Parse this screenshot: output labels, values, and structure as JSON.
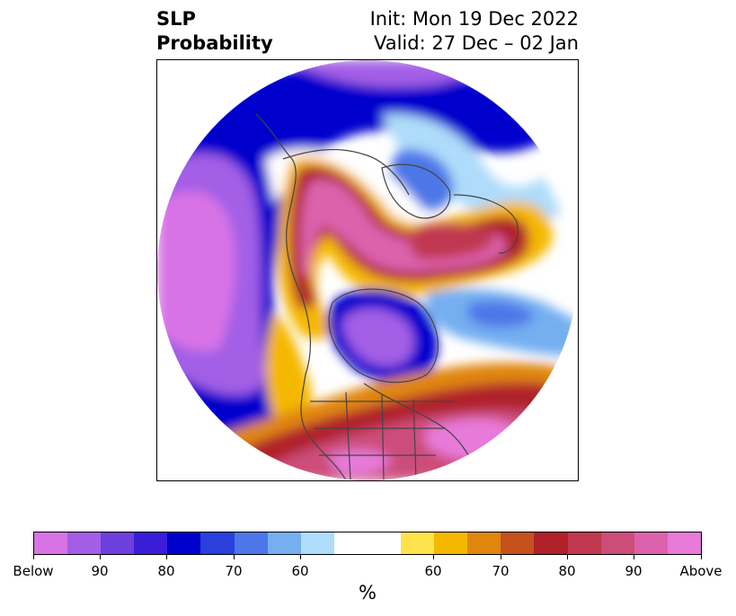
{
  "title": {
    "left_line1": "SLP",
    "left_line2": "Probability",
    "right_line1": "Init: Mon 19 Dec 2022",
    "right_line2": "Valid: 27 Dec – 02 Jan"
  },
  "colorbar": {
    "unit": "%",
    "colors": [
      "#d873e6",
      "#a35ee6",
      "#6d3fdc",
      "#3a1dd6",
      "#0000cd",
      "#2a3fdc",
      "#4d77e8",
      "#75aff0",
      "#aedcfa",
      "#ffffff",
      "#ffe34d",
      "#f5b800",
      "#e0860d",
      "#c4521a",
      "#b0212a",
      "#c0384f",
      "#cc4d7a",
      "#dc62ad",
      "#e87ad9"
    ],
    "ticks": [
      "Below",
      "90",
      "80",
      "70",
      "60",
      "60",
      "70",
      "80",
      "90",
      "Above"
    ]
  },
  "map": {
    "projection": "north-polar-stereographic",
    "variable": "SLP probability",
    "features": [
      "coastlines",
      "country-borders",
      "us-state-borders"
    ]
  }
}
